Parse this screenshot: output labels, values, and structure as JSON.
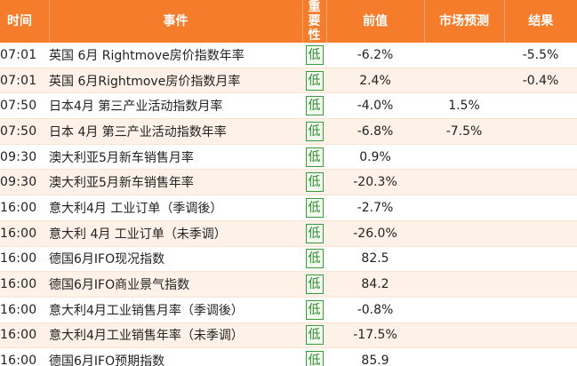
{
  "header": {
    "time": "时间",
    "event": "事件",
    "importance": "重要性",
    "previous": "前值",
    "forecast": "市场预测",
    "result": "结果"
  },
  "rows": [
    {
      "time": "07:01",
      "event": "英国 6月 Rightmove房价指数年率",
      "importance": "低",
      "previous": "-6.2%",
      "forecast": "",
      "result": "-5.5%"
    },
    {
      "time": "07:01",
      "event": "英国 6月Rightmove房价指数月率",
      "importance": "低",
      "previous": "2.4%",
      "forecast": "",
      "result": "-0.4%"
    },
    {
      "time": "07:50",
      "event": "日本4月 第三产业活动指数月率",
      "importance": "低",
      "previous": "-4.0%",
      "forecast": "1.5%",
      "result": ""
    },
    {
      "time": "07:50",
      "event": "日本 4月 第三产业活动指数年率",
      "importance": "低",
      "previous": "-6.8%",
      "forecast": "-7.5%",
      "result": ""
    },
    {
      "time": "09:30",
      "event": "澳大利亚5月新车销售月率",
      "importance": "低",
      "previous": "0.9%",
      "forecast": "",
      "result": ""
    },
    {
      "time": "09:30",
      "event": "澳大利亚5月新车销售年率",
      "importance": "低",
      "previous": "-20.3%",
      "forecast": "",
      "result": ""
    },
    {
      "time": "16:00",
      "event": "意大利4月 工业订单（季调後）",
      "importance": "低",
      "previous": "-2.7%",
      "forecast": "",
      "result": ""
    },
    {
      "time": "16:00",
      "event": "意大利 4月 工业订单（未季调）",
      "importance": "低",
      "previous": "-26.0%",
      "forecast": "",
      "result": ""
    },
    {
      "time": "16:00",
      "event": "德国6月IFO现况指数",
      "importance": "低",
      "previous": "82.5",
      "forecast": "",
      "result": ""
    },
    {
      "time": "16:00",
      "event": "德国6月IFO商业景气指数",
      "importance": "低",
      "previous": "84.2",
      "forecast": "",
      "result": ""
    },
    {
      "time": "16:00",
      "event": "意大利4月工业销售月率（季调後）",
      "importance": "低",
      "previous": "-0.8%",
      "forecast": "",
      "result": ""
    },
    {
      "time": "16:00",
      "event": "意大利4月工业销售年率（未季调）",
      "importance": "低",
      "previous": "-17.5%",
      "forecast": "",
      "result": ""
    },
    {
      "time": "16:00",
      "event": "德国6月IFO预期指数",
      "importance": "低",
      "previous": "85.9",
      "forecast": "",
      "result": ""
    }
  ],
  "colors": {
    "header_bg": "#f57c2a",
    "row_alt_bg": "#fdf1e8",
    "importance_low": "#2e8b2e"
  }
}
